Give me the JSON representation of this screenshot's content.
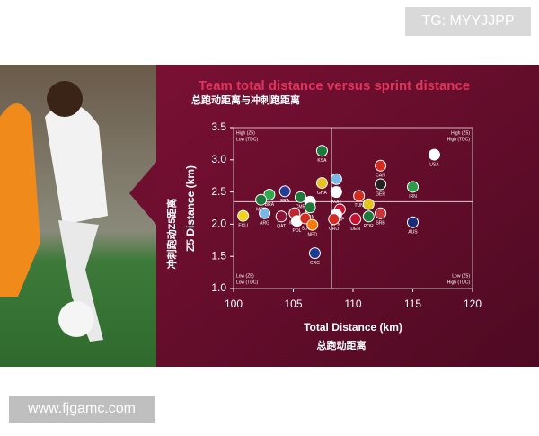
{
  "watermark_top": "TG: MYYJJPP",
  "watermark_bottom": "www.fjgamc.com",
  "chart_data": {
    "type": "scatter",
    "title": "Team total distance versus sprint distance",
    "subtitle": "总跑动距离与冲刺跑距离",
    "x_label": "Total Distance (km)",
    "x_label_cn": "总跑动距离",
    "y_label": "Z5 Distance (km)",
    "y_label_cn": "冲刺跑动Z5距离",
    "labels": [
      "KSA",
      "USA",
      "CAN",
      "URU",
      "GHA",
      "GER",
      "IRN",
      "BRA",
      "FRA",
      "KOR",
      "TUN",
      "MEX",
      "CMR",
      "ENG",
      "BEL",
      "SEN",
      "ESP",
      "ARG",
      "ECU",
      "QAT",
      "MAR",
      "JPN",
      "CRO",
      "POL",
      "SUI",
      "NED",
      "DEN",
      "SRB",
      "POR",
      "AUS",
      "CRC"
    ],
    "x": [
      107.4,
      116.8,
      112.3,
      108.6,
      107.4,
      112.3,
      115.0,
      103.0,
      104.3,
      108.6,
      110.5,
      102.3,
      105.6,
      106.4,
      111.3,
      106.4,
      108.9,
      102.6,
      100.8,
      104.0,
      105.1,
      108.6,
      108.4,
      105.3,
      106.0,
      106.6,
      110.2,
      112.3,
      111.3,
      115.0,
      106.8
    ],
    "y": [
      3.14,
      3.08,
      2.91,
      2.7,
      2.64,
      2.62,
      2.58,
      2.46,
      2.51,
      2.5,
      2.44,
      2.38,
      2.42,
      2.35,
      2.31,
      2.26,
      2.23,
      2.17,
      2.13,
      2.12,
      2.17,
      2.15,
      2.08,
      2.05,
      2.09,
      1.99,
      2.08,
      2.17,
      2.12,
      2.03,
      1.55
    ],
    "colors": [
      "#1b7a3a",
      "#ffffff",
      "#d52b1e",
      "#7ab8e6",
      "#e8c21d",
      "#222222",
      "#2a9d4a",
      "#2fa84f",
      "#1f3c9a",
      "#ffffff",
      "#d52b1e",
      "#1d7a3a",
      "#1d7a3a",
      "#ffffff",
      "#e6c21d",
      "#1d7a3a",
      "#c8102e",
      "#7ab8e6",
      "#f2d21b",
      "#8a1538",
      "#c1272d",
      "#ffffff",
      "#d52b1e",
      "#ffffff",
      "#d52b1e",
      "#ff7a00",
      "#c8102e",
      "#c6363c",
      "#1d7a3a",
      "#1a2b7a",
      "#1a3c8f"
    ],
    "xlim": [
      100,
      120
    ],
    "xticks": [
      100,
      105,
      110,
      115,
      120
    ],
    "ylim": [
      1.0,
      3.5
    ],
    "yticks": [
      {
        "value": 1.0,
        "label": "1.0"
      },
      {
        "value": 1.5,
        "label": "1.5"
      },
      {
        "value": 2.0,
        "label": "2.0"
      },
      {
        "value": 2.5,
        "label": "2.5"
      },
      {
        "value": 3.0,
        "label": "3.0"
      },
      {
        "value": 3.5,
        "label": "3.5"
      }
    ],
    "reference_x": 108.2,
    "reference_y": 2.35,
    "quadrants": {
      "top_left": [
        "High (Z5)",
        "Low (TDC)"
      ],
      "top_right": [
        "High (Z5)",
        "High (TDC)"
      ],
      "bottom_left": [
        "Low (Z5)",
        "Low (TDC)"
      ],
      "bottom_right": [
        "Low (Z5)",
        "High (TDC)"
      ]
    }
  }
}
